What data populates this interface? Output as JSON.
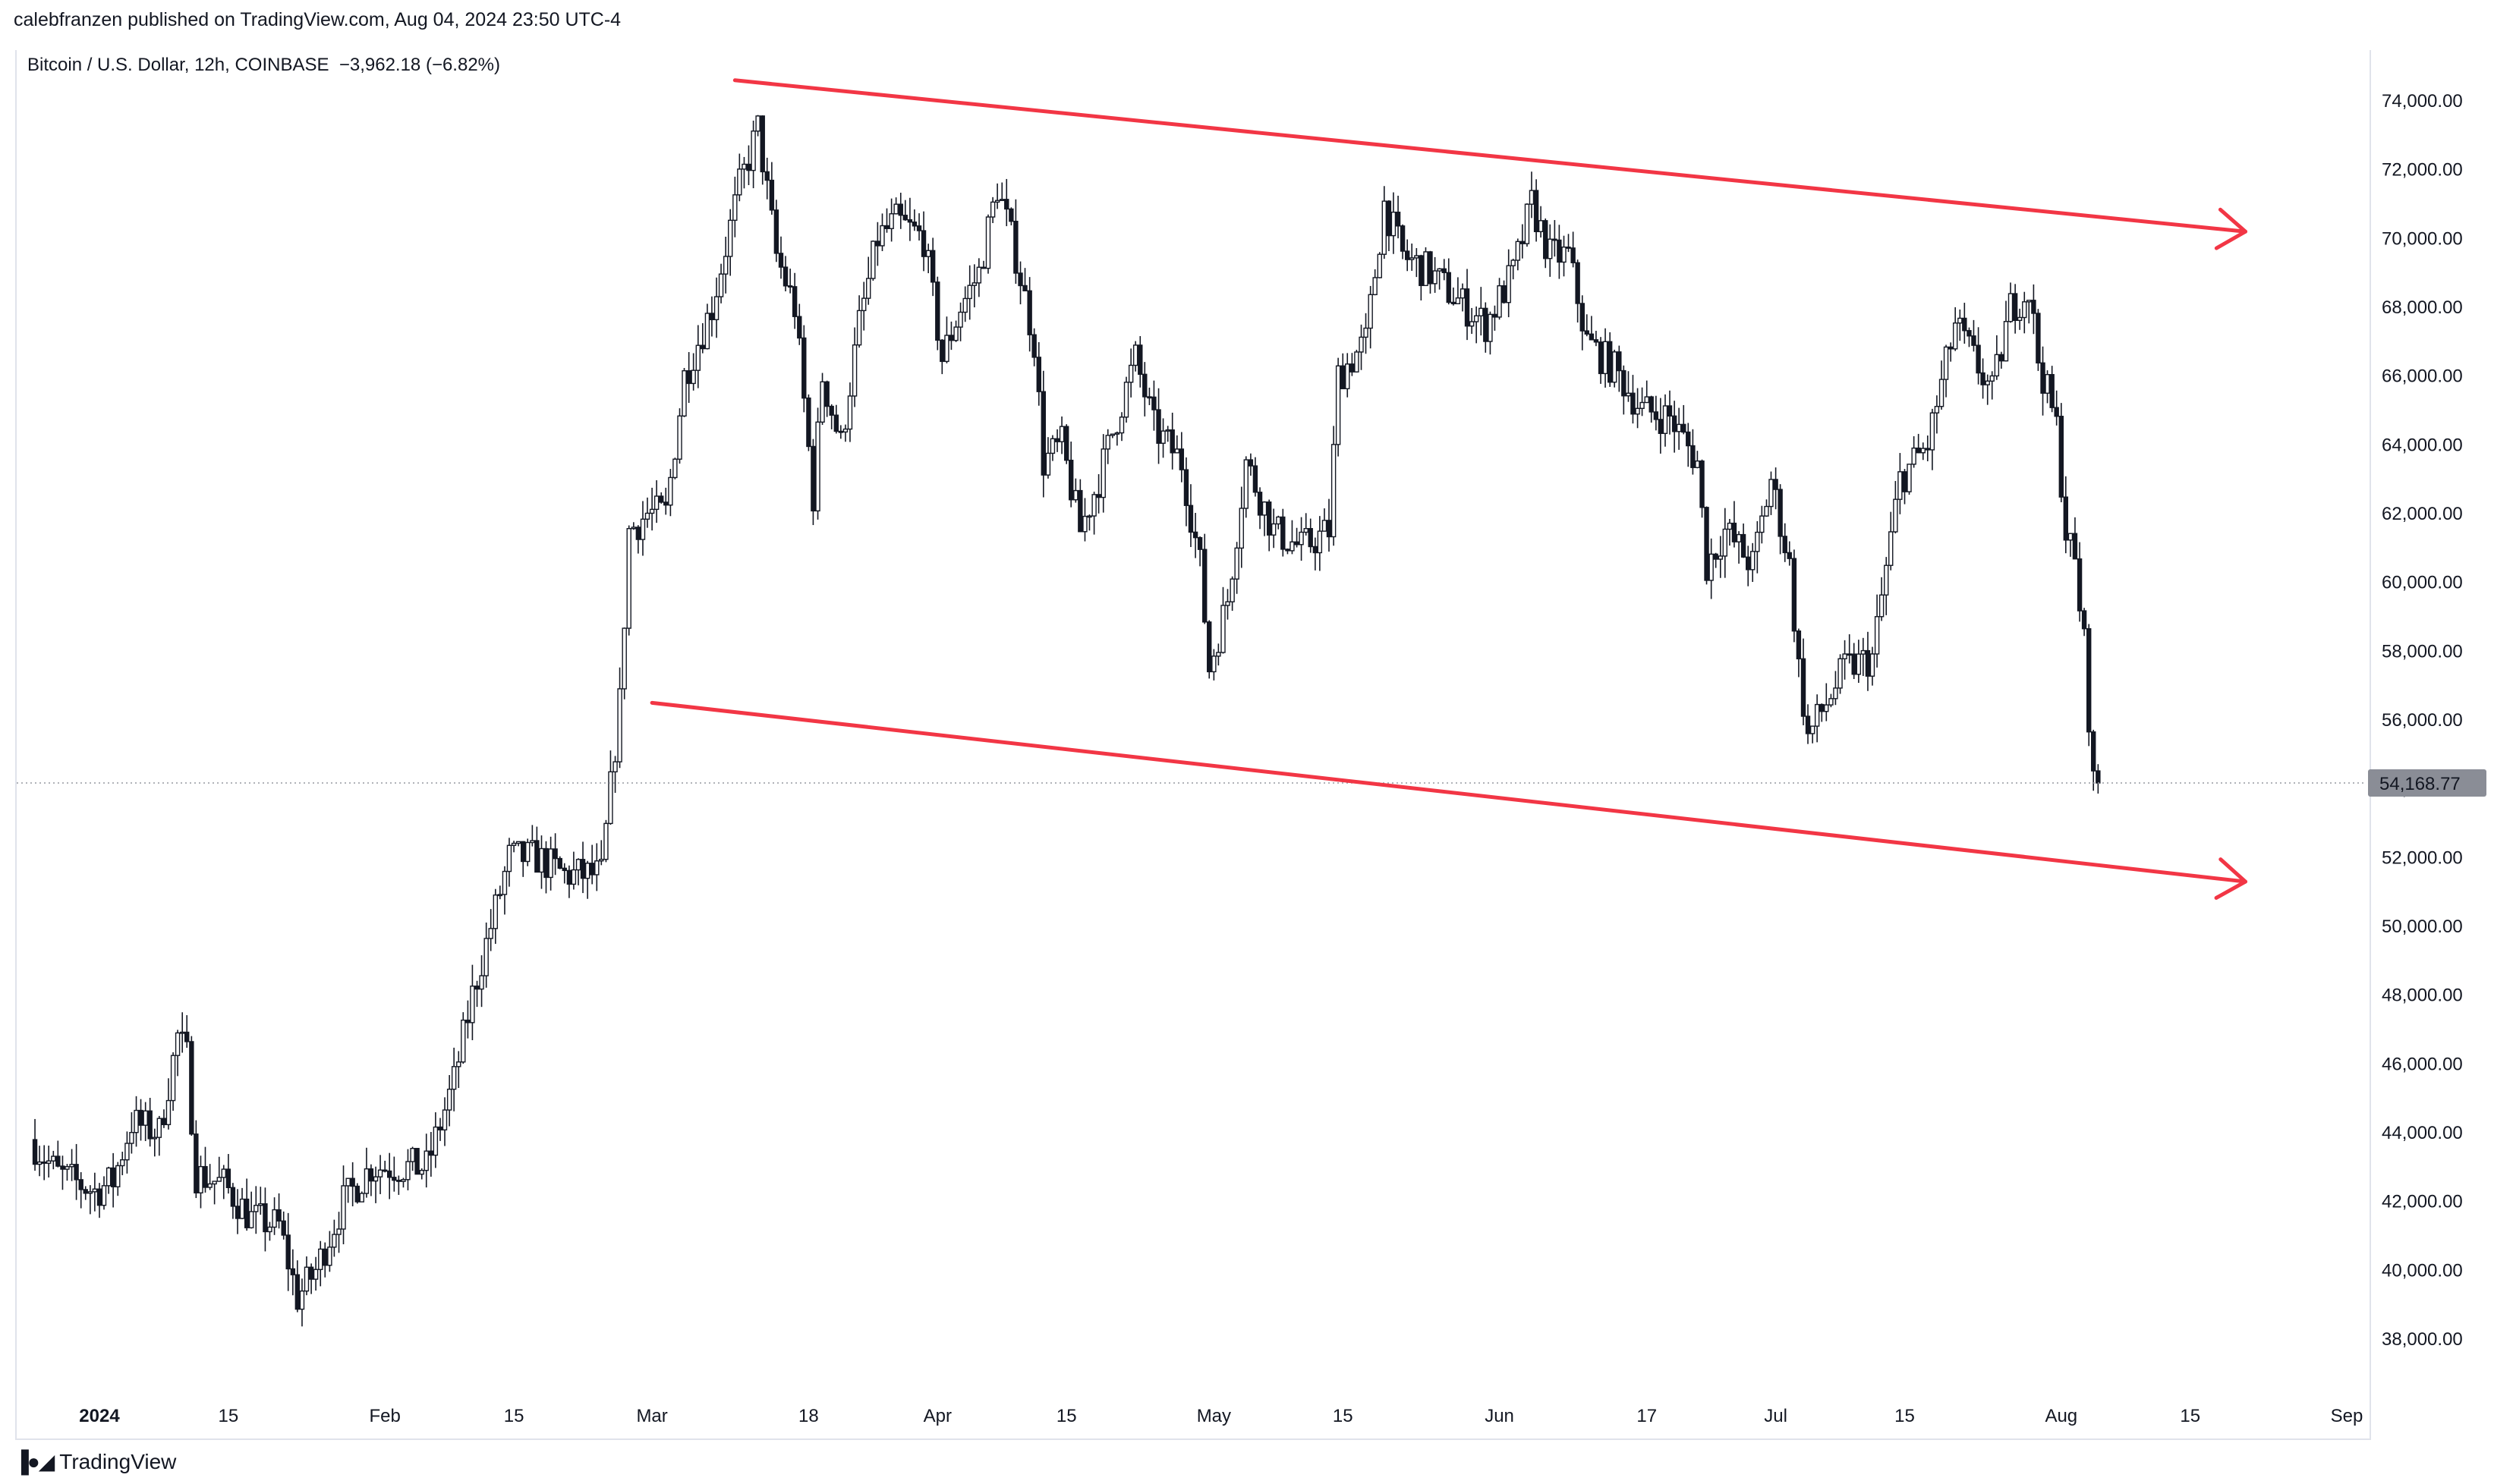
{
  "header": {
    "published_line": "calebfranzen published on TradingView.com, Aug 04, 2024 23:50 UTC-4"
  },
  "legend": {
    "symbol": "Bitcoin / U.S. Dollar, 12h, COINBASE",
    "change": "−3,962.18 (−6.82%)"
  },
  "footer": {
    "brand": "TradingView"
  },
  "colors": {
    "channel": "#f23645",
    "candle": "#131722",
    "price_tag_bg": "#8a8d96"
  },
  "chart_data": {
    "type": "candlestick",
    "title": "",
    "xlabel": "",
    "ylabel": "",
    "ylim": [
      36000,
      76000
    ],
    "y_ticks": [
      "38,000.00",
      "40,000.00",
      "42,000.00",
      "44,000.00",
      "46,000.00",
      "48,000.00",
      "50,000.00",
      "52,000.00",
      "54,000.00",
      "56,000.00",
      "58,000.00",
      "60,000.00",
      "62,000.00",
      "64,000.00",
      "66,000.00",
      "68,000.00",
      "70,000.00",
      "72,000.00",
      "74,000.00"
    ],
    "x_ticks": [
      {
        "label": "2024",
        "date": "2024-01-01",
        "bold": true
      },
      {
        "label": "15",
        "date": "2024-01-15"
      },
      {
        "label": "Feb",
        "date": "2024-02-01"
      },
      {
        "label": "15",
        "date": "2024-02-15"
      },
      {
        "label": "Mar",
        "date": "2024-03-01"
      },
      {
        "label": "18",
        "date": "2024-03-18"
      },
      {
        "label": "Apr",
        "date": "2024-04-01"
      },
      {
        "label": "15",
        "date": "2024-04-15"
      },
      {
        "label": "May",
        "date": "2024-05-01"
      },
      {
        "label": "15",
        "date": "2024-05-15"
      },
      {
        "label": "Jun",
        "date": "2024-06-01"
      },
      {
        "label": "17",
        "date": "2024-06-17"
      },
      {
        "label": "Jul",
        "date": "2024-07-01"
      },
      {
        "label": "15",
        "date": "2024-07-15"
      },
      {
        "label": "Aug",
        "date": "2024-08-01"
      },
      {
        "label": "15",
        "date": "2024-08-15"
      },
      {
        "label": "Sep",
        "date": "2024-09-01"
      }
    ],
    "last_price": 54168.77,
    "last_price_label": "54,168.77",
    "price_path": [
      [
        "2023-12-25",
        43800
      ],
      [
        "2023-12-28",
        42800
      ],
      [
        "2024-01-01",
        42300
      ],
      [
        "2024-01-03",
        42600
      ],
      [
        "2024-01-05",
        44300
      ],
      [
        "2024-01-08",
        44000
      ],
      [
        "2024-01-10",
        46800
      ],
      [
        "2024-01-11",
        46200
      ],
      [
        "2024-01-12",
        42800
      ],
      [
        "2024-01-15",
        42500
      ],
      [
        "2024-01-18",
        41500
      ],
      [
        "2024-01-21",
        41300
      ],
      [
        "2024-01-23",
        39200
      ],
      [
        "2024-01-25",
        40000
      ],
      [
        "2024-01-28",
        42000
      ],
      [
        "2024-01-31",
        43000
      ],
      [
        "2024-02-03",
        43000
      ],
      [
        "2024-02-06",
        43000
      ],
      [
        "2024-02-09",
        45500
      ],
      [
        "2024-02-11",
        48000
      ],
      [
        "2024-02-13",
        50000
      ],
      [
        "2024-02-15",
        52000
      ],
      [
        "2024-02-18",
        52000
      ],
      [
        "2024-02-21",
        51500
      ],
      [
        "2024-02-25",
        51500
      ],
      [
        "2024-02-27",
        56500
      ],
      [
        "2024-02-28",
        61500
      ],
      [
        "2024-03-01",
        62000
      ],
      [
        "2024-03-03",
        62000
      ],
      [
        "2024-03-05",
        66000
      ],
      [
        "2024-03-08",
        68000
      ],
      [
        "2024-03-11",
        71500
      ],
      [
        "2024-03-13",
        73200
      ],
      [
        "2024-03-15",
        69500
      ],
      [
        "2024-03-17",
        68000
      ],
      [
        "2024-03-19",
        62500
      ],
      [
        "2024-03-20",
        66000
      ],
      [
        "2024-03-22",
        64000
      ],
      [
        "2024-03-24",
        67500
      ],
      [
        "2024-03-26",
        70000
      ],
      [
        "2024-03-28",
        70500
      ],
      [
        "2024-03-31",
        70000
      ],
      [
        "2024-04-02",
        66500
      ],
      [
        "2024-04-04",
        68000
      ],
      [
        "2024-04-06",
        69000
      ],
      [
        "2024-04-08",
        71500
      ],
      [
        "2024-04-10",
        69500
      ],
      [
        "2024-04-12",
        67000
      ],
      [
        "2024-04-13",
        63500
      ],
      [
        "2024-04-15",
        64000
      ],
      [
        "2024-04-17",
        61500
      ],
      [
        "2024-04-19",
        63000
      ],
      [
        "2024-04-21",
        64800
      ],
      [
        "2024-04-23",
        66500
      ],
      [
        "2024-04-25",
        64500
      ],
      [
        "2024-04-28",
        63500
      ],
      [
        "2024-04-30",
        60500
      ],
      [
        "2024-05-01",
        57500
      ],
      [
        "2024-05-03",
        59500
      ],
      [
        "2024-05-05",
        63500
      ],
      [
        "2024-05-08",
        61500
      ],
      [
        "2024-05-11",
        61000
      ],
      [
        "2024-05-14",
        61500
      ],
      [
        "2024-05-15",
        66000
      ],
      [
        "2024-05-18",
        67000
      ],
      [
        "2024-05-20",
        71000
      ],
      [
        "2024-05-22",
        69500
      ],
      [
        "2024-05-25",
        69000
      ],
      [
        "2024-05-28",
        68200
      ],
      [
        "2024-05-31",
        67500
      ],
      [
        "2024-06-03",
        69000
      ],
      [
        "2024-06-05",
        71000
      ],
      [
        "2024-06-07",
        69500
      ],
      [
        "2024-06-09",
        69500
      ],
      [
        "2024-06-11",
        67000
      ],
      [
        "2024-06-14",
        66200
      ],
      [
        "2024-06-17",
        65000
      ],
      [
        "2024-06-20",
        64800
      ],
      [
        "2024-06-23",
        63500
      ],
      [
        "2024-06-24",
        60500
      ],
      [
        "2024-06-26",
        61500
      ],
      [
        "2024-06-29",
        60500
      ],
      [
        "2024-07-01",
        63000
      ],
      [
        "2024-07-03",
        60500
      ],
      [
        "2024-07-04",
        57500
      ],
      [
        "2024-07-05",
        55500
      ],
      [
        "2024-07-07",
        56500
      ],
      [
        "2024-07-09",
        57500
      ],
      [
        "2024-07-12",
        57800
      ],
      [
        "2024-07-15",
        63000
      ],
      [
        "2024-07-18",
        64000
      ],
      [
        "2024-07-21",
        67500
      ],
      [
        "2024-07-23",
        66500
      ],
      [
        "2024-07-25",
        65500
      ],
      [
        "2024-07-27",
        68000
      ],
      [
        "2024-07-29",
        68500
      ],
      [
        "2024-07-30",
        66500
      ],
      [
        "2024-08-01",
        64500
      ],
      [
        "2024-08-02",
        61500
      ],
      [
        "2024-08-03",
        60500
      ],
      [
        "2024-08-04",
        58200
      ],
      [
        "2024-08-05",
        54168.77
      ]
    ],
    "channel_lines": [
      {
        "name": "upper",
        "from": [
          "2024-03-10",
          74600
        ],
        "to": [
          "2024-08-21",
          70200
        ]
      },
      {
        "name": "lower",
        "from": [
          "2024-03-01",
          56500
        ],
        "to": [
          "2024-08-21",
          51300
        ]
      }
    ]
  }
}
